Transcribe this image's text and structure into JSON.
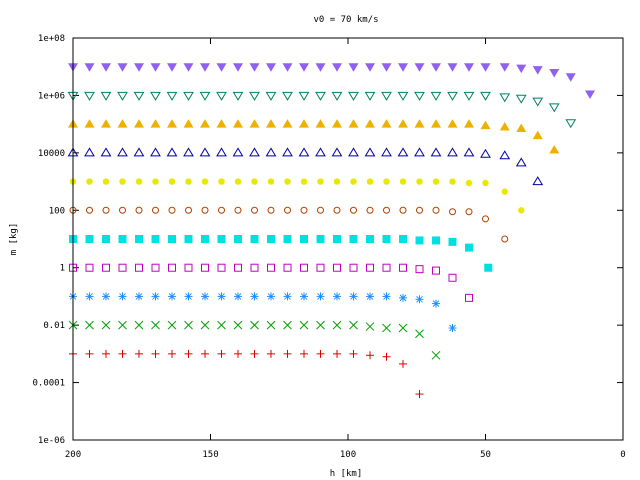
{
  "chart_data": {
    "type": "scatter",
    "title": "v0 = 70 km/s",
    "xlabel": "h [km]",
    "ylabel": "m [kg]",
    "xlim": [
      200,
      0
    ],
    "ylim_log10": [
      -6,
      8
    ],
    "x_reversed": true,
    "y_scale": "log",
    "grid": false,
    "legend": "none",
    "x_ticks": [
      200,
      150,
      100,
      50,
      0
    ],
    "x_tick_labels": [
      "200",
      "150",
      "100",
      "50",
      "0"
    ],
    "y_ticks_log10": [
      -6,
      -4,
      -2,
      0,
      2,
      4,
      6,
      8
    ],
    "y_tick_labels": [
      "1e-06",
      "0.0001",
      "0.01",
      "1",
      "100",
      "10000",
      "1e+06",
      "1e+08"
    ],
    "series": [
      {
        "marker": "plus",
        "color": "#e00000",
        "start_mass_log10": -3,
        "points": [
          [
            200,
            -3
          ],
          [
            194,
            -3
          ],
          [
            188,
            -3
          ],
          [
            182,
            -3
          ],
          [
            176,
            -3
          ],
          [
            170,
            -3
          ],
          [
            164,
            -3
          ],
          [
            158,
            -3
          ],
          [
            152,
            -3
          ],
          [
            146,
            -3
          ],
          [
            140,
            -3
          ],
          [
            134,
            -3
          ],
          [
            128,
            -3
          ],
          [
            122,
            -3
          ],
          [
            116,
            -3
          ],
          [
            110,
            -3
          ],
          [
            104,
            -3
          ],
          [
            98,
            -3
          ],
          [
            92,
            -3.05
          ],
          [
            86,
            -3.1
          ],
          [
            80,
            -3.35
          ],
          [
            74,
            -4.4
          ]
        ]
      },
      {
        "marker": "cross",
        "color": "#00a000",
        "start_mass_log10": -2,
        "points": [
          [
            200,
            -2
          ],
          [
            194,
            -2
          ],
          [
            188,
            -2
          ],
          [
            182,
            -2
          ],
          [
            176,
            -2
          ],
          [
            170,
            -2
          ],
          [
            164,
            -2
          ],
          [
            158,
            -2
          ],
          [
            152,
            -2
          ],
          [
            146,
            -2
          ],
          [
            140,
            -2
          ],
          [
            134,
            -2
          ],
          [
            128,
            -2
          ],
          [
            122,
            -2
          ],
          [
            116,
            -2
          ],
          [
            110,
            -2
          ],
          [
            104,
            -2
          ],
          [
            98,
            -2
          ],
          [
            92,
            -2.05
          ],
          [
            86,
            -2.1
          ],
          [
            80,
            -2.1
          ],
          [
            74,
            -2.3
          ],
          [
            68,
            -3.05
          ]
        ]
      },
      {
        "marker": "star",
        "color": "#2090ff",
        "start_mass_log10": -1,
        "points": [
          [
            200,
            -1
          ],
          [
            194,
            -1
          ],
          [
            188,
            -1
          ],
          [
            182,
            -1
          ],
          [
            176,
            -1
          ],
          [
            170,
            -1
          ],
          [
            164,
            -1
          ],
          [
            158,
            -1
          ],
          [
            152,
            -1
          ],
          [
            146,
            -1
          ],
          [
            140,
            -1
          ],
          [
            134,
            -1
          ],
          [
            128,
            -1
          ],
          [
            122,
            -1
          ],
          [
            116,
            -1
          ],
          [
            110,
            -1
          ],
          [
            104,
            -1
          ],
          [
            98,
            -1
          ],
          [
            92,
            -1
          ],
          [
            86,
            -1
          ],
          [
            80,
            -1.05
          ],
          [
            74,
            -1.1
          ],
          [
            68,
            -1.25
          ],
          [
            62,
            -2.1
          ]
        ]
      },
      {
        "marker": "square-open",
        "color": "#c000c0",
        "start_mass_log10": 0,
        "points": [
          [
            200,
            0
          ],
          [
            194,
            0
          ],
          [
            188,
            0
          ],
          [
            182,
            0
          ],
          [
            176,
            0
          ],
          [
            170,
            0
          ],
          [
            164,
            0
          ],
          [
            158,
            0
          ],
          [
            152,
            0
          ],
          [
            146,
            0
          ],
          [
            140,
            0
          ],
          [
            134,
            0
          ],
          [
            128,
            0
          ],
          [
            122,
            0
          ],
          [
            116,
            0
          ],
          [
            110,
            0
          ],
          [
            104,
            0
          ],
          [
            98,
            0
          ],
          [
            92,
            0
          ],
          [
            86,
            0
          ],
          [
            80,
            0
          ],
          [
            74,
            -0.05
          ],
          [
            68,
            -0.1
          ],
          [
            62,
            -0.35
          ],
          [
            56,
            -1.05
          ]
        ]
      },
      {
        "marker": "square-filled",
        "color": "#00e0e0",
        "start_mass_log10": 1,
        "points": [
          [
            200,
            1
          ],
          [
            194,
            1
          ],
          [
            188,
            1
          ],
          [
            182,
            1
          ],
          [
            176,
            1
          ],
          [
            170,
            1
          ],
          [
            164,
            1
          ],
          [
            158,
            1
          ],
          [
            152,
            1
          ],
          [
            146,
            1
          ],
          [
            140,
            1
          ],
          [
            134,
            1
          ],
          [
            128,
            1
          ],
          [
            122,
            1
          ],
          [
            116,
            1
          ],
          [
            110,
            1
          ],
          [
            104,
            1
          ],
          [
            98,
            1
          ],
          [
            92,
            1
          ],
          [
            86,
            1
          ],
          [
            80,
            1
          ],
          [
            74,
            0.95
          ],
          [
            68,
            0.95
          ],
          [
            62,
            0.9
          ],
          [
            56,
            0.7
          ],
          [
            49,
            0
          ]
        ]
      },
      {
        "marker": "circle-open",
        "color": "#b04000",
        "start_mass_log10": 2,
        "points": [
          [
            200,
            2
          ],
          [
            194,
            2
          ],
          [
            188,
            2
          ],
          [
            182,
            2
          ],
          [
            176,
            2
          ],
          [
            170,
            2
          ],
          [
            164,
            2
          ],
          [
            158,
            2
          ],
          [
            152,
            2
          ],
          [
            146,
            2
          ],
          [
            140,
            2
          ],
          [
            134,
            2
          ],
          [
            128,
            2
          ],
          [
            122,
            2
          ],
          [
            116,
            2
          ],
          [
            110,
            2
          ],
          [
            104,
            2
          ],
          [
            98,
            2
          ],
          [
            92,
            2
          ],
          [
            86,
            2
          ],
          [
            80,
            2
          ],
          [
            74,
            2
          ],
          [
            68,
            2
          ],
          [
            62,
            1.95
          ],
          [
            56,
            1.95
          ],
          [
            50,
            1.7
          ],
          [
            43,
            1
          ]
        ]
      },
      {
        "marker": "circle-filled",
        "color": "#e8e800",
        "start_mass_log10": 3,
        "points": [
          [
            200,
            3
          ],
          [
            194,
            3
          ],
          [
            188,
            3
          ],
          [
            182,
            3
          ],
          [
            176,
            3
          ],
          [
            170,
            3
          ],
          [
            164,
            3
          ],
          [
            158,
            3
          ],
          [
            152,
            3
          ],
          [
            146,
            3
          ],
          [
            140,
            3
          ],
          [
            134,
            3
          ],
          [
            128,
            3
          ],
          [
            122,
            3
          ],
          [
            116,
            3
          ],
          [
            110,
            3
          ],
          [
            104,
            3
          ],
          [
            98,
            3
          ],
          [
            92,
            3
          ],
          [
            86,
            3
          ],
          [
            80,
            3
          ],
          [
            74,
            3
          ],
          [
            68,
            3
          ],
          [
            62,
            3
          ],
          [
            56,
            2.95
          ],
          [
            50,
            2.95
          ],
          [
            43,
            2.65
          ],
          [
            37,
            2
          ]
        ]
      },
      {
        "marker": "triangle-up-open",
        "color": "#0000a0",
        "start_mass_log10": 4,
        "points": [
          [
            200,
            4
          ],
          [
            194,
            4
          ],
          [
            188,
            4
          ],
          [
            182,
            4
          ],
          [
            176,
            4
          ],
          [
            170,
            4
          ],
          [
            164,
            4
          ],
          [
            158,
            4
          ],
          [
            152,
            4
          ],
          [
            146,
            4
          ],
          [
            140,
            4
          ],
          [
            134,
            4
          ],
          [
            128,
            4
          ],
          [
            122,
            4
          ],
          [
            116,
            4
          ],
          [
            110,
            4
          ],
          [
            104,
            4
          ],
          [
            98,
            4
          ],
          [
            92,
            4
          ],
          [
            86,
            4
          ],
          [
            80,
            4
          ],
          [
            74,
            4
          ],
          [
            68,
            4
          ],
          [
            62,
            4
          ],
          [
            56,
            4
          ],
          [
            50,
            3.95
          ],
          [
            43,
            3.9
          ],
          [
            37,
            3.65
          ],
          [
            31,
            3
          ]
        ]
      },
      {
        "marker": "triangle-up-filled",
        "color": "#f0b000",
        "start_mass_log10": 5,
        "points": [
          [
            200,
            5
          ],
          [
            194,
            5
          ],
          [
            188,
            5
          ],
          [
            182,
            5
          ],
          [
            176,
            5
          ],
          [
            170,
            5
          ],
          [
            164,
            5
          ],
          [
            158,
            5
          ],
          [
            152,
            5
          ],
          [
            146,
            5
          ],
          [
            140,
            5
          ],
          [
            134,
            5
          ],
          [
            128,
            5
          ],
          [
            122,
            5
          ],
          [
            116,
            5
          ],
          [
            110,
            5
          ],
          [
            104,
            5
          ],
          [
            98,
            5
          ],
          [
            92,
            5
          ],
          [
            86,
            5
          ],
          [
            80,
            5
          ],
          [
            74,
            5
          ],
          [
            68,
            5
          ],
          [
            62,
            5
          ],
          [
            56,
            5
          ],
          [
            50,
            4.95
          ],
          [
            43,
            4.9
          ],
          [
            37,
            4.85
          ],
          [
            31,
            4.6
          ],
          [
            25,
            4.1
          ]
        ]
      },
      {
        "marker": "triangle-down-open",
        "color": "#008060",
        "start_mass_log10": 6,
        "points": [
          [
            200,
            6
          ],
          [
            194,
            6
          ],
          [
            188,
            6
          ],
          [
            182,
            6
          ],
          [
            176,
            6
          ],
          [
            170,
            6
          ],
          [
            164,
            6
          ],
          [
            158,
            6
          ],
          [
            152,
            6
          ],
          [
            146,
            6
          ],
          [
            140,
            6
          ],
          [
            134,
            6
          ],
          [
            128,
            6
          ],
          [
            122,
            6
          ],
          [
            116,
            6
          ],
          [
            110,
            6
          ],
          [
            104,
            6
          ],
          [
            98,
            6
          ],
          [
            92,
            6
          ],
          [
            86,
            6
          ],
          [
            80,
            6
          ],
          [
            74,
            6
          ],
          [
            68,
            6
          ],
          [
            62,
            6
          ],
          [
            56,
            6
          ],
          [
            50,
            6
          ],
          [
            43,
            5.95
          ],
          [
            37,
            5.9
          ],
          [
            31,
            5.8
          ],
          [
            25,
            5.6
          ],
          [
            19,
            5.05
          ]
        ]
      },
      {
        "marker": "triangle-down-filled",
        "color": "#9060f0",
        "start_mass_log10": 7,
        "points": [
          [
            200,
            7
          ],
          [
            194,
            7
          ],
          [
            188,
            7
          ],
          [
            182,
            7
          ],
          [
            176,
            7
          ],
          [
            170,
            7
          ],
          [
            164,
            7
          ],
          [
            158,
            7
          ],
          [
            152,
            7
          ],
          [
            146,
            7
          ],
          [
            140,
            7
          ],
          [
            134,
            7
          ],
          [
            128,
            7
          ],
          [
            122,
            7
          ],
          [
            116,
            7
          ],
          [
            110,
            7
          ],
          [
            104,
            7
          ],
          [
            98,
            7
          ],
          [
            92,
            7
          ],
          [
            86,
            7
          ],
          [
            80,
            7
          ],
          [
            74,
            7
          ],
          [
            68,
            7
          ],
          [
            62,
            7
          ],
          [
            56,
            7
          ],
          [
            50,
            7
          ],
          [
            43,
            7
          ],
          [
            37,
            6.95
          ],
          [
            31,
            6.9
          ],
          [
            25,
            6.8
          ],
          [
            19,
            6.65
          ],
          [
            12,
            6.05
          ]
        ]
      }
    ]
  }
}
